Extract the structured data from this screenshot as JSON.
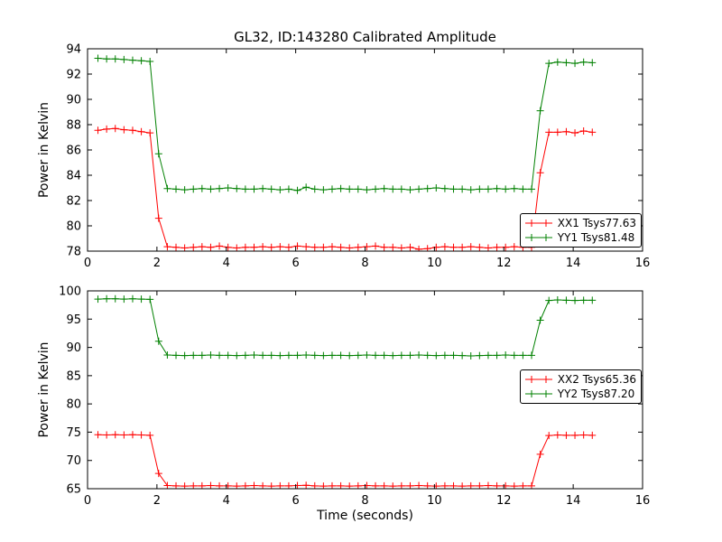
{
  "figure": {
    "title": "GL32, ID:143280 Calibrated Amplitude",
    "background": "#ffffff",
    "text_color": "#000000",
    "axis_color": "#000000"
  },
  "chart_data": [
    {
      "type": "line",
      "subplot": "top",
      "xlabel": "",
      "ylabel": "Power in Kelvin",
      "xlim": [
        0,
        16
      ],
      "ylim": [
        78,
        94
      ],
      "xticks": [
        0,
        2,
        4,
        6,
        8,
        10,
        12,
        14,
        16
      ],
      "yticks": [
        78,
        80,
        82,
        84,
        86,
        88,
        90,
        92,
        94
      ],
      "grid": false,
      "legend_position": "lower right",
      "x": [
        0.3,
        0.55,
        0.8,
        1.05,
        1.3,
        1.55,
        1.8,
        2.05,
        2.3,
        2.55,
        2.8,
        3.05,
        3.3,
        3.55,
        3.8,
        4.05,
        4.3,
        4.55,
        4.8,
        5.05,
        5.3,
        5.55,
        5.8,
        6.05,
        6.3,
        6.55,
        6.8,
        7.05,
        7.3,
        7.55,
        7.8,
        8.05,
        8.3,
        8.55,
        8.8,
        9.05,
        9.3,
        9.55,
        9.8,
        10.05,
        10.3,
        10.55,
        10.8,
        11.05,
        11.3,
        11.55,
        11.8,
        12.05,
        12.3,
        12.55,
        12.8,
        13.05,
        13.3,
        13.55,
        13.8,
        14.05,
        14.3,
        14.55
      ],
      "series": [
        {
          "name": "XX1 Tsys77.63",
          "color": "#ff0000",
          "marker": "plus",
          "y": [
            87.55,
            87.65,
            87.7,
            87.6,
            87.55,
            87.45,
            87.35,
            80.6,
            78.35,
            78.3,
            78.25,
            78.3,
            78.35,
            78.3,
            78.4,
            78.3,
            78.25,
            78.3,
            78.3,
            78.35,
            78.3,
            78.35,
            78.3,
            78.4,
            78.35,
            78.3,
            78.3,
            78.35,
            78.3,
            78.25,
            78.3,
            78.35,
            78.4,
            78.3,
            78.3,
            78.25,
            78.3,
            78.15,
            78.2,
            78.3,
            78.35,
            78.3,
            78.3,
            78.35,
            78.3,
            78.25,
            78.3,
            78.3,
            78.35,
            78.3,
            78.3,
            84.2,
            87.4,
            87.4,
            87.45,
            87.35,
            87.5,
            87.4
          ]
        },
        {
          "name": "YY1 Tsys81.48",
          "color": "#008000",
          "marker": "plus",
          "y": [
            93.25,
            93.2,
            93.2,
            93.15,
            93.1,
            93.05,
            93.0,
            85.7,
            82.95,
            82.9,
            82.85,
            82.9,
            82.95,
            82.9,
            82.95,
            83.0,
            82.95,
            82.9,
            82.9,
            82.95,
            82.9,
            82.85,
            82.9,
            82.8,
            83.05,
            82.9,
            82.85,
            82.9,
            82.95,
            82.9,
            82.9,
            82.85,
            82.9,
            82.95,
            82.9,
            82.9,
            82.85,
            82.9,
            82.95,
            83.0,
            82.95,
            82.9,
            82.9,
            82.85,
            82.9,
            82.9,
            82.95,
            82.9,
            82.95,
            82.9,
            82.9,
            89.1,
            92.85,
            92.95,
            92.9,
            92.85,
            92.95,
            92.9
          ]
        }
      ]
    },
    {
      "type": "line",
      "subplot": "bottom",
      "xlabel": "Time (seconds)",
      "ylabel": "Power in Kelvin",
      "xlim": [
        0,
        16
      ],
      "ylim": [
        65,
        100
      ],
      "xticks": [
        0,
        2,
        4,
        6,
        8,
        10,
        12,
        14,
        16
      ],
      "yticks": [
        65,
        70,
        75,
        80,
        85,
        90,
        95,
        100
      ],
      "grid": false,
      "legend_position": "center right",
      "x": [
        0.3,
        0.55,
        0.8,
        1.05,
        1.3,
        1.55,
        1.8,
        2.05,
        2.3,
        2.55,
        2.8,
        3.05,
        3.3,
        3.55,
        3.8,
        4.05,
        4.3,
        4.55,
        4.8,
        5.05,
        5.3,
        5.55,
        5.8,
        6.05,
        6.3,
        6.55,
        6.8,
        7.05,
        7.3,
        7.55,
        7.8,
        8.05,
        8.3,
        8.55,
        8.8,
        9.05,
        9.3,
        9.55,
        9.8,
        10.05,
        10.3,
        10.55,
        10.8,
        11.05,
        11.3,
        11.55,
        11.8,
        12.05,
        12.3,
        12.55,
        12.8,
        13.05,
        13.3,
        13.55,
        13.8,
        14.05,
        14.3,
        14.55
      ],
      "series": [
        {
          "name": "XX2 Tsys65.36",
          "color": "#ff0000",
          "marker": "plus",
          "y": [
            74.55,
            74.5,
            74.55,
            74.5,
            74.55,
            74.5,
            74.45,
            67.7,
            65.55,
            65.5,
            65.45,
            65.5,
            65.5,
            65.55,
            65.5,
            65.5,
            65.45,
            65.5,
            65.55,
            65.5,
            65.45,
            65.5,
            65.5,
            65.55,
            65.6,
            65.5,
            65.45,
            65.5,
            65.5,
            65.45,
            65.5,
            65.55,
            65.5,
            65.5,
            65.45,
            65.5,
            65.5,
            65.55,
            65.5,
            65.45,
            65.5,
            65.5,
            65.45,
            65.5,
            65.5,
            65.55,
            65.5,
            65.5,
            65.45,
            65.5,
            65.5,
            71.1,
            74.4,
            74.5,
            74.45,
            74.45,
            74.5,
            74.45
          ]
        },
        {
          "name": "YY2 Tsys87.20",
          "color": "#008000",
          "marker": "plus",
          "y": [
            98.55,
            98.6,
            98.6,
            98.55,
            98.6,
            98.55,
            98.5,
            91.1,
            88.65,
            88.6,
            88.55,
            88.6,
            88.6,
            88.65,
            88.6,
            88.6,
            88.55,
            88.6,
            88.65,
            88.6,
            88.6,
            88.55,
            88.6,
            88.6,
            88.65,
            88.6,
            88.55,
            88.6,
            88.6,
            88.55,
            88.6,
            88.65,
            88.6,
            88.6,
            88.55,
            88.6,
            88.6,
            88.65,
            88.6,
            88.55,
            88.6,
            88.6,
            88.55,
            88.5,
            88.55,
            88.6,
            88.6,
            88.65,
            88.6,
            88.6,
            88.6,
            94.8,
            98.3,
            98.4,
            98.35,
            98.3,
            98.35,
            98.35
          ]
        }
      ]
    }
  ]
}
